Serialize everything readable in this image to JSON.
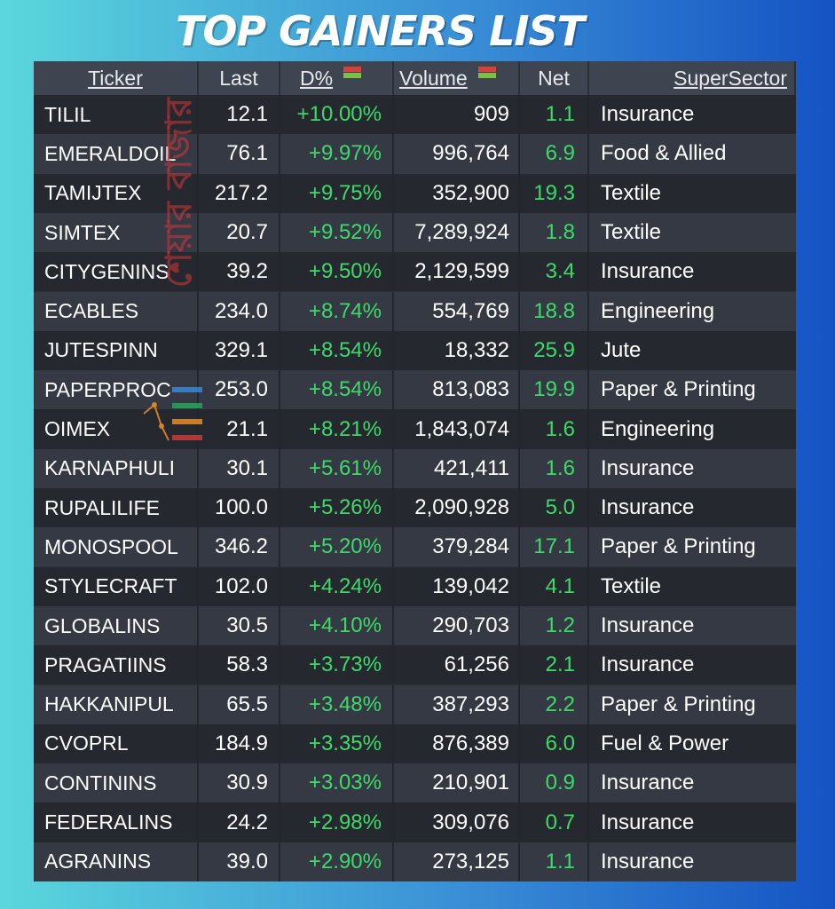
{
  "title": "TOP GAINERS LIST",
  "columns": {
    "ticker": "Ticker",
    "last": "Last",
    "dp": "D%",
    "volume": "Volume",
    "net": "Net",
    "sector": "SuperSector"
  },
  "watermark": {
    "text": "শেয়ার বাজার",
    "icon": "bar-chart-logo-icon"
  },
  "colors": {
    "gain": "#3fd96a",
    "header": "#3e4450",
    "row_dark": "#25282e",
    "row_light": "#353943"
  },
  "rows": [
    {
      "ticker": "TILIL",
      "last": "12.1",
      "dp": "+10.00%",
      "volume": "909",
      "net": "1.1",
      "sector": "Insurance"
    },
    {
      "ticker": "EMERALDOIL",
      "last": "76.1",
      "dp": "+9.97%",
      "volume": "996,764",
      "net": "6.9",
      "sector": "Food & Allied"
    },
    {
      "ticker": "TAMIJTEX",
      "last": "217.2",
      "dp": "+9.75%",
      "volume": "352,900",
      "net": "19.3",
      "sector": "Textile"
    },
    {
      "ticker": "SIMTEX",
      "last": "20.7",
      "dp": "+9.52%",
      "volume": "7,289,924",
      "net": "1.8",
      "sector": "Textile"
    },
    {
      "ticker": "CITYGENINS",
      "last": "39.2",
      "dp": "+9.50%",
      "volume": "2,129,599",
      "net": "3.4",
      "sector": "Insurance"
    },
    {
      "ticker": "ECABLES",
      "last": "234.0",
      "dp": "+8.74%",
      "volume": "554,769",
      "net": "18.8",
      "sector": "Engineering"
    },
    {
      "ticker": "JUTESPINN",
      "last": "329.1",
      "dp": "+8.54%",
      "volume": "18,332",
      "net": "25.9",
      "sector": "Jute"
    },
    {
      "ticker": "PAPERPROC",
      "last": "253.0",
      "dp": "+8.54%",
      "volume": "813,083",
      "net": "19.9",
      "sector": "Paper & Printing"
    },
    {
      "ticker": "OIMEX",
      "last": "21.1",
      "dp": "+8.21%",
      "volume": "1,843,074",
      "net": "1.6",
      "sector": "Engineering"
    },
    {
      "ticker": "KARNAPHULI",
      "last": "30.1",
      "dp": "+5.61%",
      "volume": "421,411",
      "net": "1.6",
      "sector": "Insurance"
    },
    {
      "ticker": "RUPALILIFE",
      "last": "100.0",
      "dp": "+5.26%",
      "volume": "2,090,928",
      "net": "5.0",
      "sector": "Insurance"
    },
    {
      "ticker": "MONOSPOOL",
      "last": "346.2",
      "dp": "+5.20%",
      "volume": "379,284",
      "net": "17.1",
      "sector": "Paper & Printing"
    },
    {
      "ticker": "STYLECRAFT",
      "last": "102.0",
      "dp": "+4.24%",
      "volume": "139,042",
      "net": "4.1",
      "sector": "Textile"
    },
    {
      "ticker": "GLOBALINS",
      "last": "30.5",
      "dp": "+4.10%",
      "volume": "290,703",
      "net": "1.2",
      "sector": "Insurance"
    },
    {
      "ticker": "PRAGATIINS",
      "last": "58.3",
      "dp": "+3.73%",
      "volume": "61,256",
      "net": "2.1",
      "sector": "Insurance"
    },
    {
      "ticker": "HAKKANIPUL",
      "last": "65.5",
      "dp": "+3.48%",
      "volume": "387,293",
      "net": "2.2",
      "sector": "Paper & Printing"
    },
    {
      "ticker": "CVOPRL",
      "last": "184.9",
      "dp": "+3.35%",
      "volume": "876,389",
      "net": "6.0",
      "sector": "Fuel & Power"
    },
    {
      "ticker": "CONTININS",
      "last": "30.9",
      "dp": "+3.03%",
      "volume": "210,901",
      "net": "0.9",
      "sector": "Insurance"
    },
    {
      "ticker": "FEDERALINS",
      "last": "24.2",
      "dp": "+2.98%",
      "volume": "309,076",
      "net": "0.7",
      "sector": "Insurance"
    },
    {
      "ticker": "AGRANINS",
      "last": "39.0",
      "dp": "+2.90%",
      "volume": "273,125",
      "net": "1.1",
      "sector": "Insurance"
    }
  ]
}
